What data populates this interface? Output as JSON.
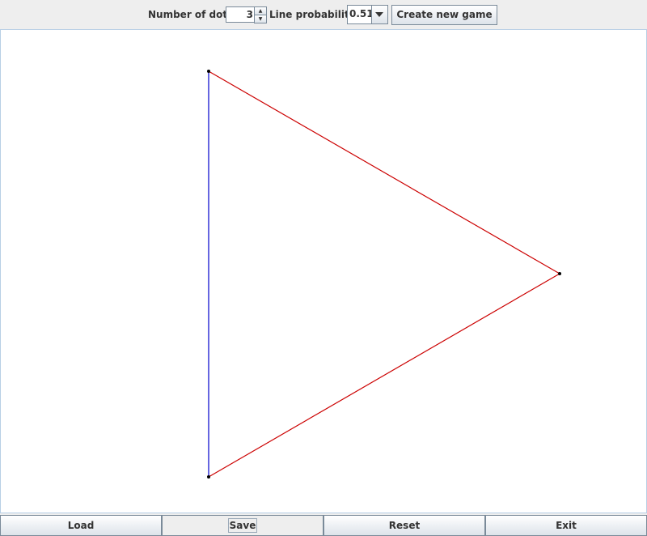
{
  "toolbar": {
    "dots_label": "Number of dots:",
    "dots_value": "3",
    "probability_label": "Line probability:",
    "probability_value": "0.51",
    "create_button": "Create new game"
  },
  "board": {
    "dots": [
      {
        "id": "A"
      },
      {
        "id": "B"
      },
      {
        "id": "C"
      }
    ],
    "lines": [
      {
        "from": "A",
        "to": "C",
        "color": "#0000cc"
      },
      {
        "from": "A",
        "to": "B",
        "color": "#cc0000"
      },
      {
        "from": "B",
        "to": "C",
        "color": "#cc0000"
      }
    ]
  },
  "buttons": {
    "load": "Load",
    "save": "Save",
    "reset": "Reset",
    "exit": "Exit"
  }
}
